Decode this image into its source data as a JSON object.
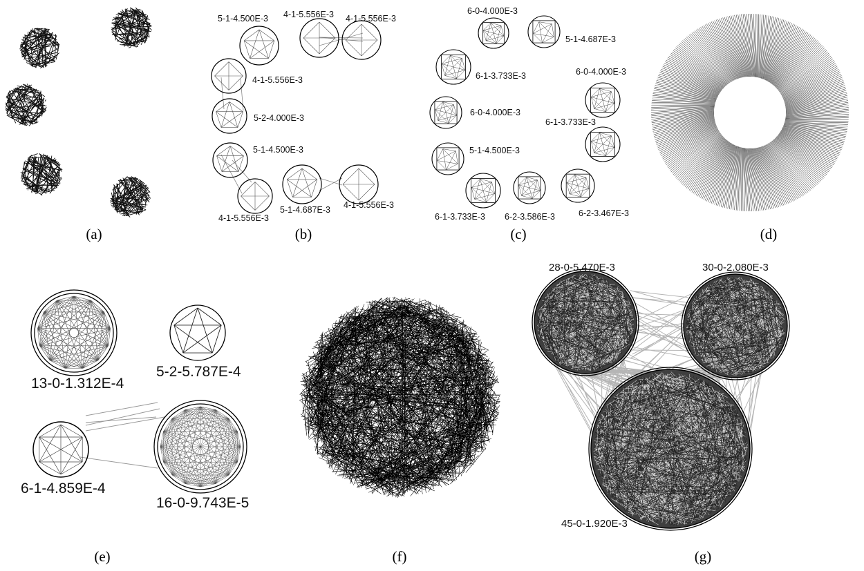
{
  "panels": {
    "a": {
      "caption": "(a)"
    },
    "b": {
      "caption": "(b)",
      "labels": [
        "5-1-4.500E-3",
        "4-1-5.556E-3",
        "4-1-5.556E-3",
        "4-1-5.556E-3",
        "5-2-4.000E-3",
        "5-1-4.500E-3",
        "5-1-4.687E-3",
        "4-1-5.556E-3",
        "4-1-5.556E-3"
      ]
    },
    "c": {
      "caption": "(c)",
      "labels": [
        "6-0-4.000E-3",
        "5-1-4.687E-3",
        "6-1-3.733E-3",
        "6-0-4.000E-3",
        "6-0-4.000E-3",
        "6-1-3.733E-3",
        "5-1-4.500E-3",
        "6-1-3.733E-3",
        "6-2-3.586E-3",
        "6-2-3.467E-3"
      ]
    },
    "d": {
      "caption": "(d)"
    },
    "e": {
      "caption": "(e)",
      "labels": [
        "13-0-1.312E-4",
        "5-2-5.787E-4",
        "6-1-4.859E-4",
        "16-0-9.743E-5"
      ]
    },
    "f": {
      "caption": "(f)"
    },
    "g": {
      "caption": "(g)",
      "labels": [
        "28-0-5.470E-3",
        "30-0-2.080E-3",
        "45-0-1.920E-3"
      ]
    }
  }
}
